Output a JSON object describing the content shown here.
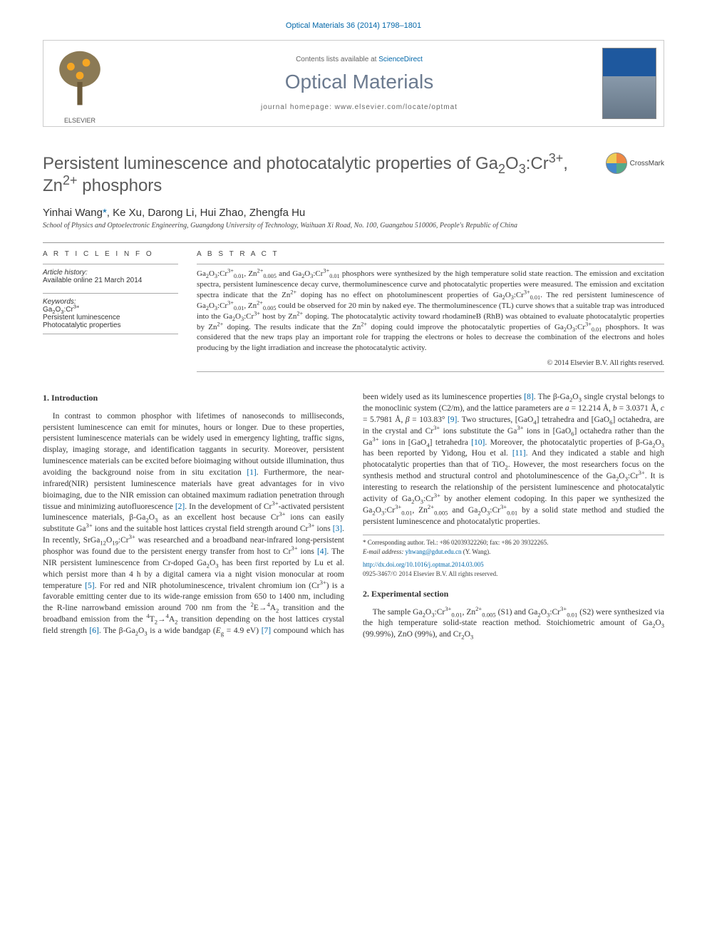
{
  "journal_ref": "Optical Materials 36 (2014) 1798–1801",
  "banner": {
    "publisher_label": "ELSEVIER",
    "contents_prefix": "Contents lists available at ",
    "contents_link": "ScienceDirect",
    "journal_name": "Optical Materials",
    "homepage_prefix": "journal homepage: ",
    "homepage_url": "www.elsevier.com/locate/optmat",
    "cover_title": "Optical Materials"
  },
  "title_html": "Persistent luminescence and photocatalytic properties of Ga<sub>2</sub>O<sub>3</sub>:Cr<sup>3+</sup>, Zn<sup>2+</sup> phosphors",
  "crossmark_label": "CrossMark",
  "authors_html": "Yinhai Wang<a>*</a>, Ke Xu, Darong Li, Hui Zhao, Zhengfa Hu",
  "affiliation": "School of Physics and Optoelectronic Engineering, Guangdong University of Technology, Waihuan Xi Road, No. 100, Guangzhou 510006, People's Republic of China",
  "article_info": {
    "head": "A R T I C L E   I N F O",
    "history_label": "Article history:",
    "history_line": "Available online 21 March 2014",
    "keywords_label": "Keywords:",
    "keywords_html": "Ga<sub>2</sub>O<sub>3</sub>:Cr<sup>3+</sup><br>Persistent luminescence<br>Photocatalytic properties"
  },
  "abstract": {
    "head": "A B S T R A C T",
    "body_html": "Ga<sub>2</sub>O<sub>3</sub>:Cr<sup>3+</sup><sub>0.01</sub>, Zn<sup>2+</sup><sub>0.005</sub> and Ga<sub>2</sub>O<sub>3</sub>:Cr<sup>3+</sup><sub>0.01</sub> phosphors were synthesized by the high temperature solid state reaction. The emission and excitation spectra, persistent luminescence decay curve, thermoluminescence curve and photocatalytic properties were measured. The emission and excitation spectra indicate that the Zn<sup>2+</sup> doping has no effect on photoluminescent properties of Ga<sub>2</sub>O<sub>3</sub>:Cr<sup>3+</sup><sub>0.01</sub>. The red persistent luminescence of Ga<sub>2</sub>O<sub>3</sub>:Cr<sup>3+</sup><sub>0.01</sub>, Zn<sup>2+</sup><sub>0.005</sub> could be observed for 20 min by naked eye. The thermoluminescence (TL) curve shows that a suitable trap was introduced into the Ga<sub>2</sub>O<sub>3</sub>:Cr<sup>3+</sup> host by Zn<sup>2+</sup> doping. The photocatalytic activity toward rhodamineB (RhB) was obtained to evaluate photocatalytic properties by Zn<sup>2+</sup> doping. The results indicate that the Zn<sup>2+</sup> doping could improve the photocatalytic properties of Ga<sub>2</sub>O<sub>3</sub>:Cr<sup>3+</sup><sub>0.01</sub> phosphors. It was considered that the new traps play an important role for trapping the electrons or holes to decrease the combination of the electrons and holes producing by the light irradiation and increase the photocatalytic activity.",
    "copyright": "© 2014 Elsevier B.V. All rights reserved."
  },
  "sections": {
    "s1_head": "1. Introduction",
    "s1_p1_html": "In contrast to common phosphor with lifetimes of nanoseconds to milliseconds, persistent luminescence can emit for minutes, hours or longer. Due to these properties, persistent luminescence materials can be widely used in emergency lighting, traffic signs, display, imaging storage, and identification taggants in security. Moreover, persistent luminescence materials can be excited before bioimaging without outside illumination, thus avoiding the background noise from in situ excitation <span class=\"ref\">[1]</span>. Furthermore, the near-infrared(NIR) persistent luminescence materials have great advantages for in vivo bioimaging, due to the NIR emission can obtained maximum radiation penetration through tissue and minimizing autofluorescence <span class=\"ref\">[2]</span>. In the development of Cr<sup>3+</sup>-activated persistent luminescence materials, β-Ga<sub>2</sub>O<sub>3</sub> as an excellent host because Cr<sup>3+</sup> ions can easily substitute Ga<sup>3+</sup> ions and the suitable host lattices crystal field strength around Cr<sup>3+</sup> ions <span class=\"ref\">[3]</span>. In recently, SrGa<sub>12</sub>O<sub>19</sub>:Cr<sup>3+</sup> was researched and a broadband near-infrared long-persistent phosphor was found due to the persistent energy transfer from host to Cr<sup>3+</sup> ions <span class=\"ref\">[4]</span>. The NIR persistent luminescence from Cr-doped Ga<sub>2</sub>O<sub>3</sub> has been first reported by Lu et al. which persist more than 4 h by a digital camera via a night vision monocular at room temperature <span class=\"ref\">[5]</span>. For red and NIR photoluminescence, trivalent chromium ion (Cr<sup>3+</sup>) is a favorable emitting center due to its wide-range emission from 650 to 1400 nm, including the R-line narrowband emission around 700 nm from the <sup>2</sup>E→<sup>4</sup>A<sub>2</sub> transition and the broadband emission from the <sup>4</sup>T<sub>2</sub>→<sup>4</sup>A<sub>2</sub> transition depending on the host lattices crystal field strength <span class=\"ref\">[6]</span>. The β-Ga<sub>2</sub>O<sub>3</sub> is a wide bandgap (<i>E</i><sub>g</sub> = 4.9 eV) <span class=\"ref\">[7]</span> compound which has been widely used as its luminescence properties <span class=\"ref\">[8]</span>. The β-Ga<sub>2</sub>O<sub>3</sub> single crystal belongs to the monoclinic system (C2/m), and the lattice parameters are <i>a</i> = 12.214 Å, <i>b</i> = 3.0371 Å, <i>c</i> = 5.7981 Å, <i>β</i> = 103.83° <span class=\"ref\">[9]</span>. Two structures, [GaO<sub>4</sub>] tetrahedra and [GaO<sub>6</sub>] octahedra, are in the crystal and Cr<sup>3+</sup> ions substitute the Ga<sup>3+</sup> ions in [GaO<sub>6</sub>] octahedra rather than the Ga<sup>3+</sup> ions in [GaO<sub>4</sub>] tetrahedra <span class=\"ref\">[10]</span>. Moreover, the photocatalytic properties of β-Ga<sub>2</sub>O<sub>3</sub> has been reported by Yidong, Hou et al. <span class=\"ref\">[11]</span>. And they indicated a stable and high photocatalytic properties than that of TiO<sub>2</sub>. However, the most researchers focus on the synthesis method and structural control and photoluminescence of the Ga<sub>2</sub>O<sub>3</sub>:Cr<sup>3+</sup>. It is interesting to research the relationship of the persistent luminescence and photocatalytic activity of Ga<sub>2</sub>O<sub>3</sub>:Cr<sup>3+</sup> by another element codoping. In this paper we synthesized the Ga<sub>2</sub>O<sub>3</sub>:Cr<sup>3+</sup><sub>0.01</sub>, Zn<sup>2+</sup><sub>0.005</sub> and Ga<sub>2</sub>O<sub>3</sub>:Cr<sup>3+</sup><sub>0.01</sub> by a solid state method and studied the persistent luminescence and photocatalytic properties.",
    "s2_head": "2. Experimental section",
    "s2_p1_html": "The sample Ga<sub>2</sub>O<sub>3</sub>:Cr<sup>3+</sup><sub>0.01</sub>, Zn<sup>2+</sup><sub>0.005</sub> (S1) and Ga<sub>2</sub>O<sub>3</sub>:Cr<sup>3+</sup><sub>0.01</sub> (S2) were synthesized via the high temperature solid-state reaction method. Stoichiometric amount of Ga<sub>2</sub>O<sub>3</sub> (99.99%), ZnO (99%), and Cr<sub>2</sub>O<sub>3</sub>"
  },
  "footnote": {
    "corr_html": "* Corresponding author. Tel.: +86 02039322260; fax: +86 20 39322265.",
    "email_label": "E-mail address: ",
    "email": "yhwang@gdut.edu.cn",
    "email_suffix": " (Y. Wang)."
  },
  "footer": {
    "doi_url": "http://dx.doi.org/10.1016/j.optmat.2014.03.005",
    "issn_line": "0925-3467/© 2014 Elsevier B.V. All rights reserved."
  },
  "colors": {
    "link": "#0066a8",
    "heading_gray": "#5a5a5a",
    "body_text": "#333333",
    "rule": "#999999"
  }
}
